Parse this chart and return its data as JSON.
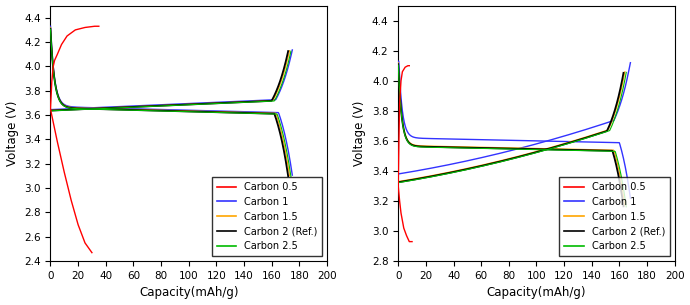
{
  "left": {
    "xlabel": "Capacity(mAh/g)",
    "ylabel": "Voltage (V)",
    "xlim": [
      0,
      200
    ],
    "ylim": [
      2.4,
      4.5
    ],
    "xticks": [
      0,
      20,
      40,
      60,
      80,
      100,
      120,
      140,
      160,
      180,
      200
    ],
    "yticks": [
      2.4,
      2.6,
      2.8,
      3.0,
      3.2,
      3.4,
      3.6,
      3.8,
      4.0,
      4.2,
      4.4
    ]
  },
  "right": {
    "xlabel": "Capacity(mAh/g)",
    "ylabel": "Voltage (V)",
    "xlim": [
      0,
      200
    ],
    "ylim": [
      2.8,
      4.5
    ],
    "xticks": [
      0,
      20,
      40,
      60,
      80,
      100,
      120,
      140,
      160,
      180,
      200
    ],
    "yticks": [
      2.8,
      3.0,
      3.2,
      3.4,
      3.6,
      3.8,
      4.0,
      4.2,
      4.4
    ]
  },
  "colors": {
    "Carbon 0.5": "#FF0000",
    "Carbon 1": "#3333FF",
    "Carbon 1.5": "#FFA500",
    "Carbon 2 (Ref.)": "#000000",
    "Carbon 2.5": "#00BB00"
  },
  "legend_labels": [
    "Carbon 0.5",
    "Carbon 1",
    "Carbon 1.5",
    "Carbon 2 (Ref.)",
    "Carbon 2.5"
  ]
}
